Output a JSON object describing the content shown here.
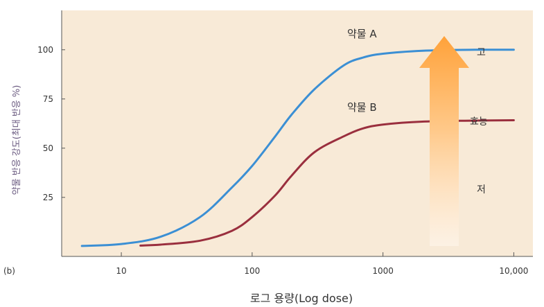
{
  "panel_label": "(b)",
  "chart_data": {
    "type": "line",
    "xlabel": "로그 용량(Log dose)",
    "ylabel": "약물 반응 강도(최대 반응 %)",
    "xscale": "log",
    "xlim": [
      3.5,
      14000
    ],
    "ylim": [
      -5,
      120
    ],
    "x_ticks": [
      10,
      100,
      1000,
      10000
    ],
    "x_tick_labels": [
      "10",
      "100",
      "1000",
      "10,000"
    ],
    "y_ticks": [
      25,
      50,
      75,
      100
    ],
    "y_tick_labels": [
      "25",
      "50",
      "75",
      "100"
    ],
    "grid": false,
    "series": [
      {
        "name": "약물 A",
        "color": "#3b8fd4",
        "x": [
          5,
          10,
          20,
          40,
          70,
          100,
          150,
          200,
          300,
          500,
          700,
          1000,
          2000,
          5000,
          10000
        ],
        "y": [
          0.3,
          1.3,
          5,
          15,
          30,
          41,
          56,
          67,
          80,
          92,
          96,
          98,
          99.5,
          100,
          100
        ]
      },
      {
        "name": "약물 B",
        "color": "#9a2f3e",
        "x": [
          14,
          20,
          40,
          70,
          100,
          150,
          200,
          300,
          500,
          700,
          1000,
          2000,
          5000,
          10000
        ],
        "y": [
          0.5,
          1,
          3,
          8,
          15,
          26,
          36,
          48,
          56,
          60,
          62,
          63.5,
          64,
          64.2
        ]
      }
    ]
  },
  "efficacy_scale": {
    "high": "고",
    "middle": "효능",
    "low": "저",
    "color_top": "#ffa23a",
    "color_bottom": "#fff1e0"
  },
  "colors": {
    "plot_bg": "#f8ead7",
    "axis": "#555555"
  }
}
